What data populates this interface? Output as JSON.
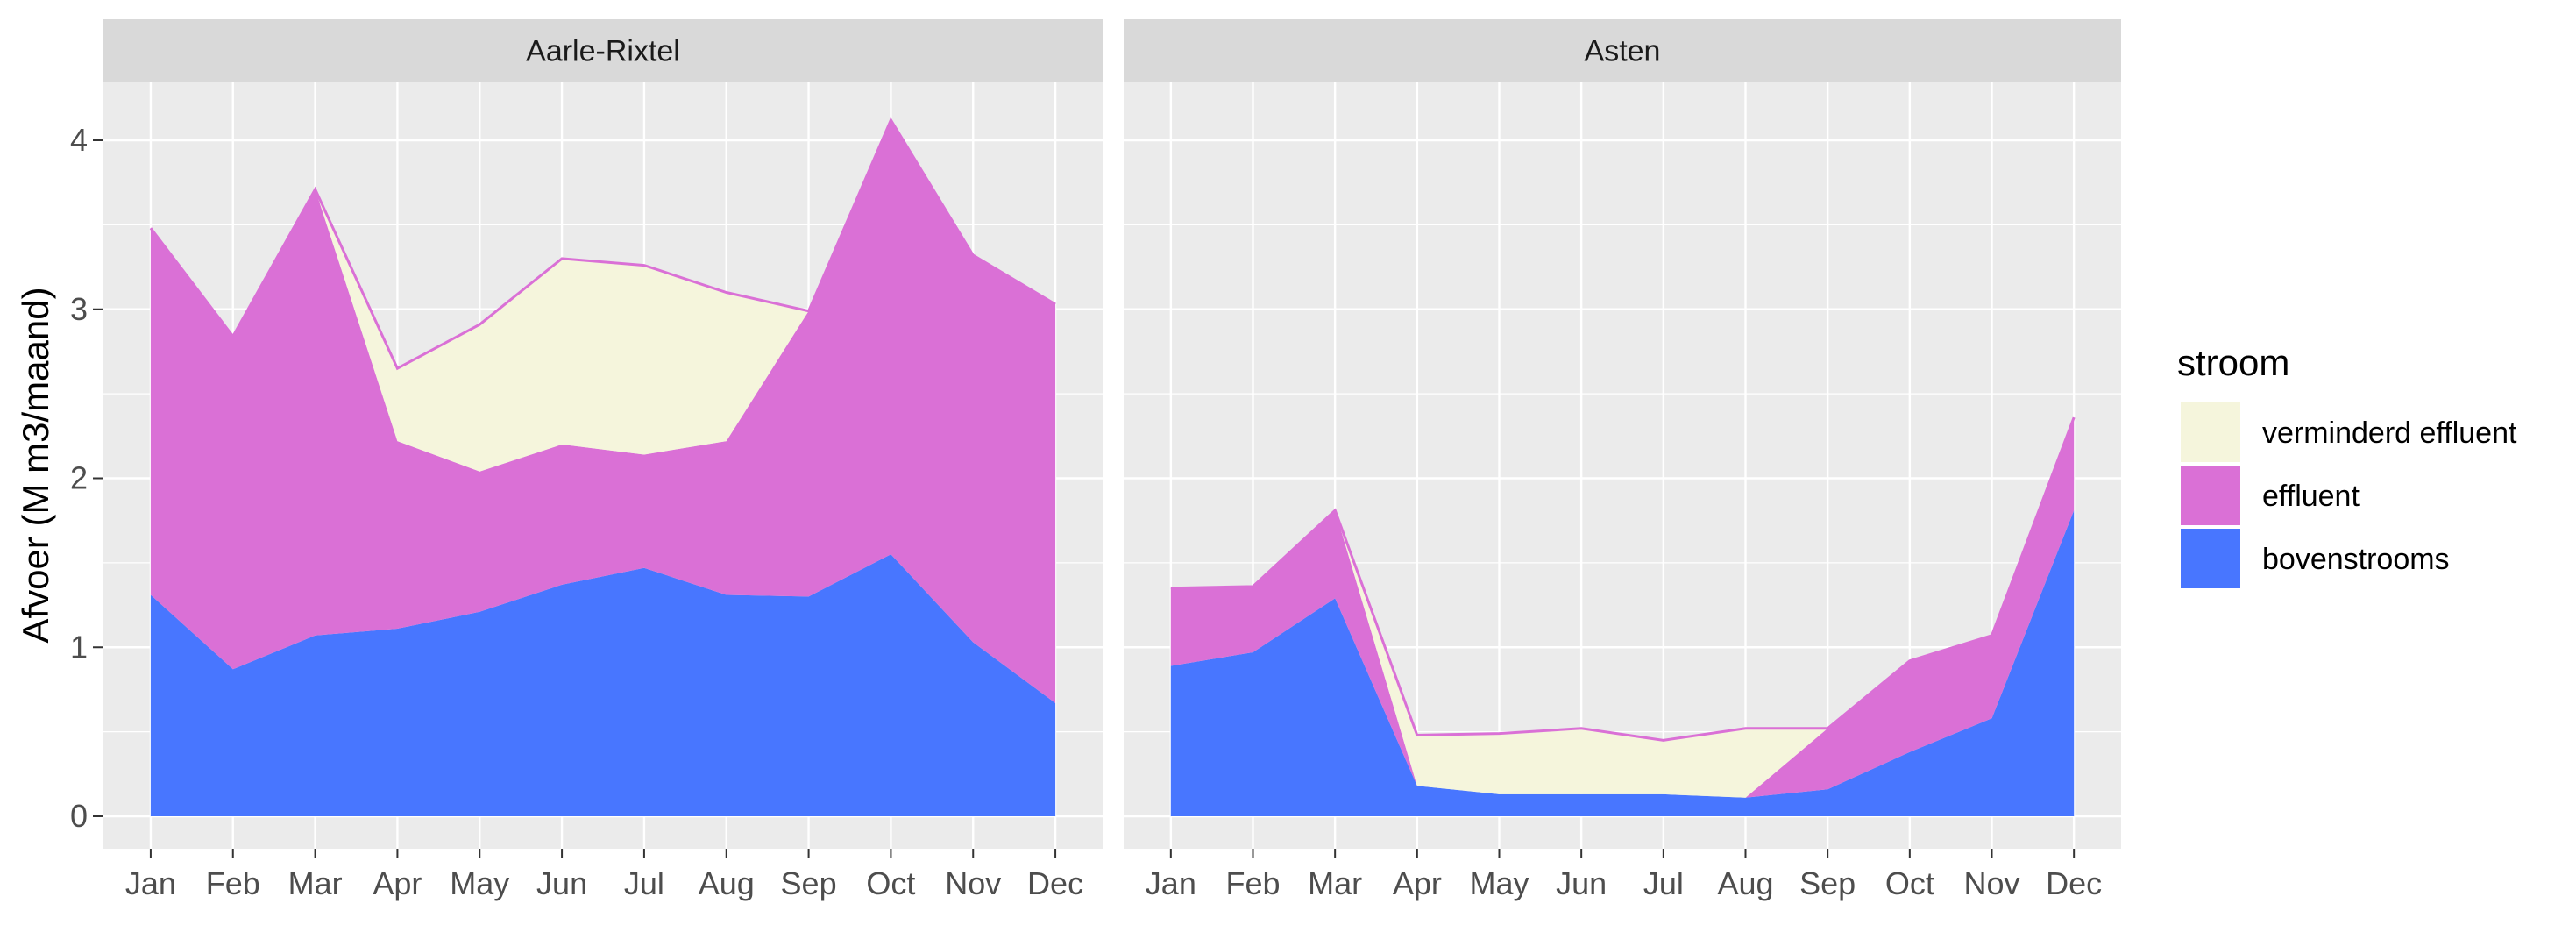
{
  "chart_data": {
    "type": "area",
    "stacked": true,
    "x": [
      "Jan",
      "Feb",
      "Mar",
      "Apr",
      "May",
      "Jun",
      "Jul",
      "Aug",
      "Sep",
      "Oct",
      "Nov",
      "Dec"
    ],
    "ylabel": "Afvoer (M m3/maand)",
    "ylim": [
      0,
      4.4
    ],
    "yticks": [
      0,
      1,
      2,
      3,
      4
    ],
    "grid": true,
    "legend": {
      "title": "stroom",
      "position": "right",
      "entries": [
        {
          "label": "verminderd effluent",
          "color": "#F5F5DC"
        },
        {
          "label": "effluent",
          "color": "#DA70D6"
        },
        {
          "label": "bovenstrooms",
          "color": "#4876FF"
        }
      ]
    },
    "colors": {
      "bovenstrooms": "#4876FF",
      "effluent": "#DA70D6",
      "verminderd_effluent": "#F5F5DC",
      "panel_background": "#EBEBEB",
      "strip_background": "#D9D9D9",
      "grid": "#FFFFFF"
    },
    "panels": [
      {
        "strip": "Aarle-Rixtel",
        "series": [
          {
            "name": "bovenstrooms",
            "values": [
              1.31,
              0.87,
              1.07,
              1.11,
              1.21,
              1.37,
              1.47,
              1.31,
              1.3,
              1.55,
              1.03,
              0.67
            ]
          },
          {
            "name": "effluent",
            "values": [
              2.17,
              1.97,
              2.64,
              1.11,
              0.83,
              0.83,
              0.67,
              0.91,
              1.69,
              2.57,
              2.29,
              2.36
            ]
          },
          {
            "name": "verminderd effluent",
            "values": [
              0,
              0,
              0,
              0.43,
              0.87,
              1.1,
              1.12,
              0.88,
              0,
              0,
              0,
              0
            ]
          }
        ]
      },
      {
        "strip": "Asten",
        "series": [
          {
            "name": "bovenstrooms",
            "values": [
              0.89,
              0.97,
              1.29,
              0.18,
              0.13,
              0.13,
              0.13,
              0.11,
              0.16,
              0.38,
              0.58,
              1.81
            ]
          },
          {
            "name": "effluent",
            "values": [
              0.46,
              0.39,
              0.52,
              0,
              0,
              0,
              0,
              0,
              0.36,
              0.54,
              0.49,
              0.55
            ]
          },
          {
            "name": "verminderd effluent",
            "values": [
              0,
              0,
              0,
              0.3,
              0.36,
              0.39,
              0.32,
              0.41,
              0,
              0,
              0,
              0
            ]
          }
        ]
      }
    ]
  }
}
